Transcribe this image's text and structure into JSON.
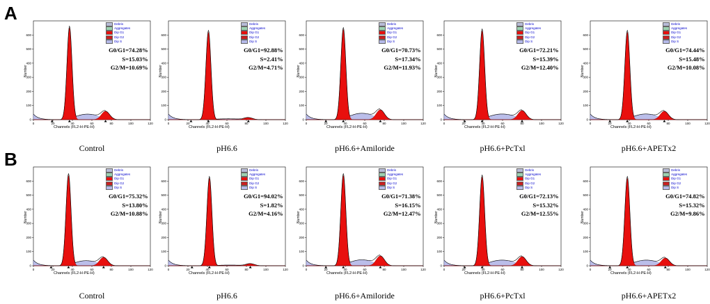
{
  "panels": [
    {
      "letter": "A"
    },
    {
      "letter": "B"
    }
  ],
  "axis": {
    "xlabel": "Channels (FL2-H-PE-H)",
    "ylabel": "Number",
    "xticks": [
      "0",
      "20",
      "40",
      "60",
      "80",
      "100",
      "120"
    ]
  },
  "legend": [
    "Debris",
    "Aggregates",
    "Dip G1",
    "Dip G2",
    "Dip S"
  ],
  "colors": {
    "g1": "#e8100e",
    "s": "#b4b8e8",
    "debris": "#b8bcd8",
    "aggregates": "#9cd2b0",
    "g2": "#c82020"
  },
  "chart_data": [
    {
      "type": "area",
      "title": "Control",
      "row": "A",
      "ylim": [
        0,
        700
      ],
      "yticks": [
        "0",
        "100",
        "200",
        "300",
        "400",
        "500",
        "600"
      ],
      "xlim": [
        0,
        120
      ],
      "xlabel": "Channels (FL2-H-PE-H)",
      "ylabel": "Number",
      "g1": 74.28,
      "s": 15.03,
      "g2m": 10.69,
      "g1_channel": 37,
      "g2_channel": 74,
      "g1_peak": 650,
      "g2_peak": 60,
      "stats": [
        "G0/G1=74.28%",
        "S=15.03%",
        "G2/M=10.69%"
      ]
    },
    {
      "type": "area",
      "title": "pH6.6",
      "row": "A",
      "ylim": [
        0,
        700
      ],
      "yticks": [
        "0",
        "100",
        "200",
        "300",
        "400",
        "500",
        "600"
      ],
      "xlim": [
        0,
        120
      ],
      "xlabel": "Channels (FL2-H-PE-H)",
      "ylabel": "Number",
      "g1": 92.88,
      "s": 2.41,
      "g2m": 4.71,
      "g1_channel": 41,
      "g2_channel": 82,
      "g1_peak": 620,
      "g2_peak": 15,
      "stats": [
        "G0/G1=92.88%",
        "S=2.41%",
        "G2/M=4.71%"
      ]
    },
    {
      "type": "area",
      "title": "pH6.6+Amiloride",
      "row": "A",
      "ylim": [
        0,
        700
      ],
      "yticks": [
        "0",
        "100",
        "200",
        "300",
        "400",
        "500",
        "600"
      ],
      "xlim": [
        0,
        120
      ],
      "xlabel": "Channels (FL2-H-PE-H)",
      "ylabel": "Number",
      "g1": 70.73,
      "s": 17.34,
      "g2m": 11.93,
      "g1_channel": 38,
      "g2_channel": 76,
      "g1_peak": 640,
      "g2_peak": 70,
      "stats": [
        "G0/G1=70.73%",
        "S=17.34%",
        "G2/M=11.93%"
      ]
    },
    {
      "type": "area",
      "title": "pH6.6+PcTxl",
      "row": "A",
      "ylim": [
        0,
        700
      ],
      "yticks": [
        "0",
        "100",
        "200",
        "300",
        "400",
        "500",
        "600"
      ],
      "xlim": [
        0,
        120
      ],
      "xlabel": "Channels (FL2-H-PE-H)",
      "ylabel": "Number",
      "g1": 72.21,
      "s": 15.39,
      "g2m": 12.4,
      "g1_channel": 39,
      "g2_channel": 80,
      "g1_peak": 630,
      "g2_peak": 65,
      "stats": [
        "G0/G1=72.21%",
        "S=15.39%",
        "G2/M=12.40%"
      ]
    },
    {
      "type": "area",
      "title": "pH6.6+APETx2",
      "row": "A",
      "ylim": [
        0,
        700
      ],
      "yticks": [
        "0",
        "100",
        "200",
        "300",
        "400",
        "500",
        "600"
      ],
      "xlim": [
        0,
        120
      ],
      "xlabel": "Channels (FL2-H-PE-H)",
      "ylabel": "Number",
      "g1": 74.44,
      "s": 15.48,
      "g2m": 10.08,
      "g1_channel": 38,
      "g2_channel": 76,
      "g1_peak": 620,
      "g2_peak": 60,
      "stats": [
        "G0/G1=74.44%",
        "S=15.48%",
        "G2/M=10.08%"
      ]
    },
    {
      "type": "area",
      "title": "Control",
      "row": "B",
      "ylim": [
        0,
        700
      ],
      "yticks": [
        "0",
        "100",
        "200",
        "300",
        "400",
        "500",
        "600"
      ],
      "xlim": [
        0,
        120
      ],
      "xlabel": "Channels (FL2-H-PE-H)",
      "ylabel": "Number",
      "g1": 75.32,
      "s": 13.8,
      "g2m": 10.88,
      "g1_channel": 36,
      "g2_channel": 72,
      "g1_peak": 640,
      "g2_peak": 60,
      "stats": [
        "G0/G1=75.32%",
        "S=13.80%",
        "G2/M=10.88%"
      ]
    },
    {
      "type": "area",
      "title": "pH6.6",
      "row": "B",
      "ylim": [
        0,
        700
      ],
      "yticks": [
        "0",
        "100",
        "200",
        "300",
        "400",
        "500",
        "600"
      ],
      "xlim": [
        0,
        120
      ],
      "xlabel": "Channels (FL2-H-PE-H)",
      "ylabel": "Number",
      "g1": 94.02,
      "s": 1.82,
      "g2m": 4.16,
      "g1_channel": 42,
      "g2_channel": 84,
      "g1_peak": 620,
      "g2_peak": 15,
      "stats": [
        "G0/G1=94.02%",
        "S=1.82%",
        "G2/M=4.16%"
      ]
    },
    {
      "type": "area",
      "title": "pH6.6+Amiloride",
      "row": "B",
      "ylim": [
        0,
        700
      ],
      "yticks": [
        "0",
        "100",
        "200",
        "300",
        "400",
        "500",
        "600"
      ],
      "xlim": [
        0,
        120
      ],
      "xlabel": "Channels (FL2-H-PE-H)",
      "ylabel": "Number",
      "g1": 71.38,
      "s": 16.15,
      "g2m": 12.47,
      "g1_channel": 38,
      "g2_channel": 76,
      "g1_peak": 640,
      "g2_peak": 70,
      "stats": [
        "G0/G1=71.38%",
        "S=16.15%",
        "G2/M=12.47%"
      ]
    },
    {
      "type": "area",
      "title": "pH6.6+PcTxl",
      "row": "B",
      "ylim": [
        0,
        700
      ],
      "yticks": [
        "0",
        "100",
        "200",
        "300",
        "400",
        "500",
        "600"
      ],
      "xlim": [
        0,
        120
      ],
      "xlabel": "Channels (FL2-H-PE-H)",
      "ylabel": "Number",
      "g1": 72.13,
      "s": 15.32,
      "g2m": 12.55,
      "g1_channel": 39,
      "g2_channel": 80,
      "g1_peak": 630,
      "g2_peak": 65,
      "stats": [
        "G0/G1=72.13%",
        "S=15.32%",
        "G2/M=12.55%"
      ]
    },
    {
      "type": "area",
      "title": "pH6.6+APETx2",
      "row": "B",
      "ylim": [
        0,
        700
      ],
      "yticks": [
        "0",
        "100",
        "200",
        "300",
        "400",
        "500",
        "600"
      ],
      "xlim": [
        0,
        120
      ],
      "xlabel": "Channels (FL2-H-PE-H)",
      "ylabel": "Number",
      "g1": 74.82,
      "s": 15.32,
      "g2m": 9.86,
      "g1_channel": 38,
      "g2_channel": 77,
      "g1_peak": 620,
      "g2_peak": 55,
      "stats": [
        "G0/G1=74.82%",
        "S=15.32%",
        "G2/M=9.86%"
      ]
    }
  ]
}
